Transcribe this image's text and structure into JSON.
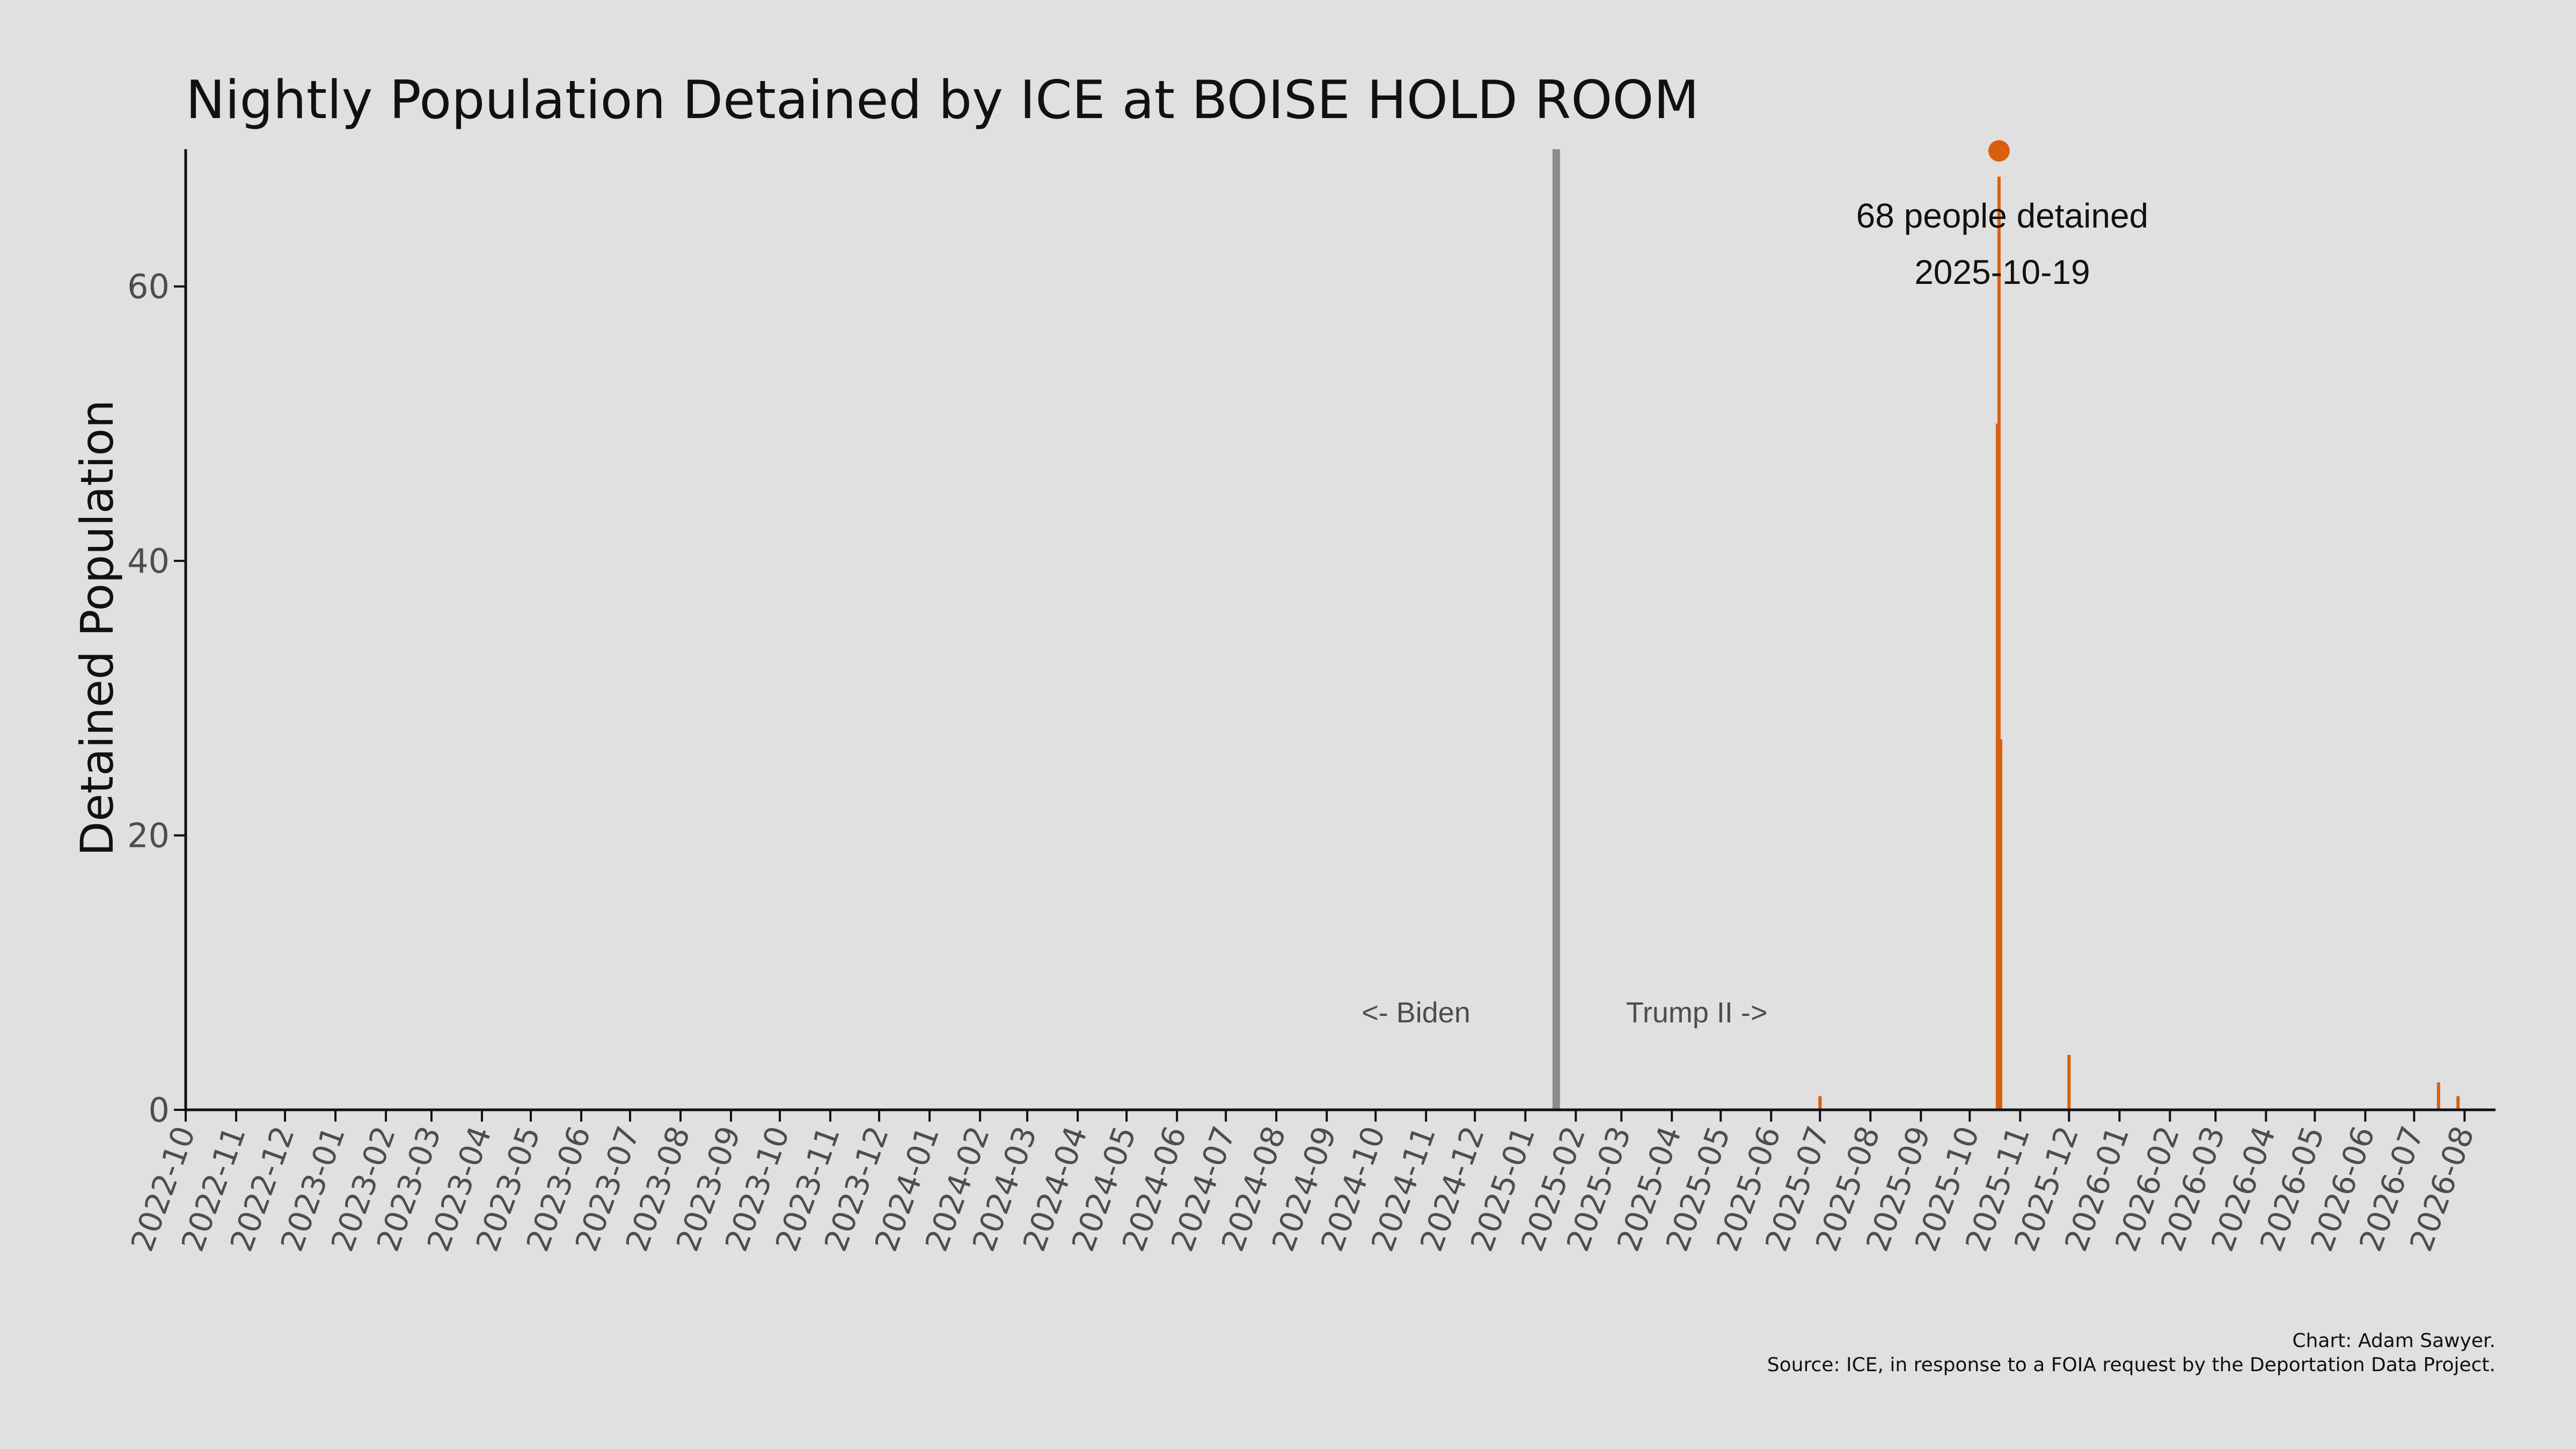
{
  "chart_data": {
    "type": "bar",
    "title": "Nightly Population Detained by ICE at BOISE HOLD ROOM",
    "xlabel": "",
    "ylabel": "Detained Population",
    "x_range": [
      "2022-10-01",
      "2026-08-20"
    ],
    "ylim": [
      0,
      70
    ],
    "y_ticks": [
      0,
      20,
      40,
      60
    ],
    "x_ticks": [
      "2022-10",
      "2022-11",
      "2022-12",
      "2023-01",
      "2023-02",
      "2023-03",
      "2023-04",
      "2023-05",
      "2023-06",
      "2023-07",
      "2023-08",
      "2023-09",
      "2023-10",
      "2023-11",
      "2023-12",
      "2024-01",
      "2024-02",
      "2024-03",
      "2024-04",
      "2024-05",
      "2024-06",
      "2024-07",
      "2024-08",
      "2024-09",
      "2024-10",
      "2024-11",
      "2024-12",
      "2025-01",
      "2025-02",
      "2025-03",
      "2025-04",
      "2025-05",
      "2025-06",
      "2025-07",
      "2025-08",
      "2025-09",
      "2025-10",
      "2025-11",
      "2025-12",
      "2026-01",
      "2026-02",
      "2026-03",
      "2026-04",
      "2026-05",
      "2026-06",
      "2026-07",
      "2026-08"
    ],
    "grid": false,
    "bar_color": "#d95f0e",
    "divider": {
      "date": "2025-01-20",
      "color": "#8c8c8c"
    },
    "era_labels": {
      "left": "<- Biden",
      "right": "Trump II ->"
    },
    "series": [
      {
        "values": [
          {
            "date": "2025-07-01",
            "value": 1
          },
          {
            "date": "2025-10-18",
            "value": 50
          },
          {
            "date": "2025-10-19",
            "value": 68
          },
          {
            "date": "2025-10-20",
            "value": 27
          },
          {
            "date": "2025-12-01",
            "value": 4
          },
          {
            "date": "2026-07-16",
            "value": 2
          },
          {
            "date": "2026-07-28",
            "value": 1
          }
        ]
      }
    ],
    "peak": {
      "date": "2025-10-19",
      "value": 68,
      "label_line1": "68 people detained",
      "label_line2": "2025-10-19",
      "marker_color": "#d95f0e"
    }
  },
  "caption": {
    "line1": "Chart: Adam Sawyer.",
    "line2": "Source: ICE, in response to a FOIA request by the Deportation Data Project."
  }
}
